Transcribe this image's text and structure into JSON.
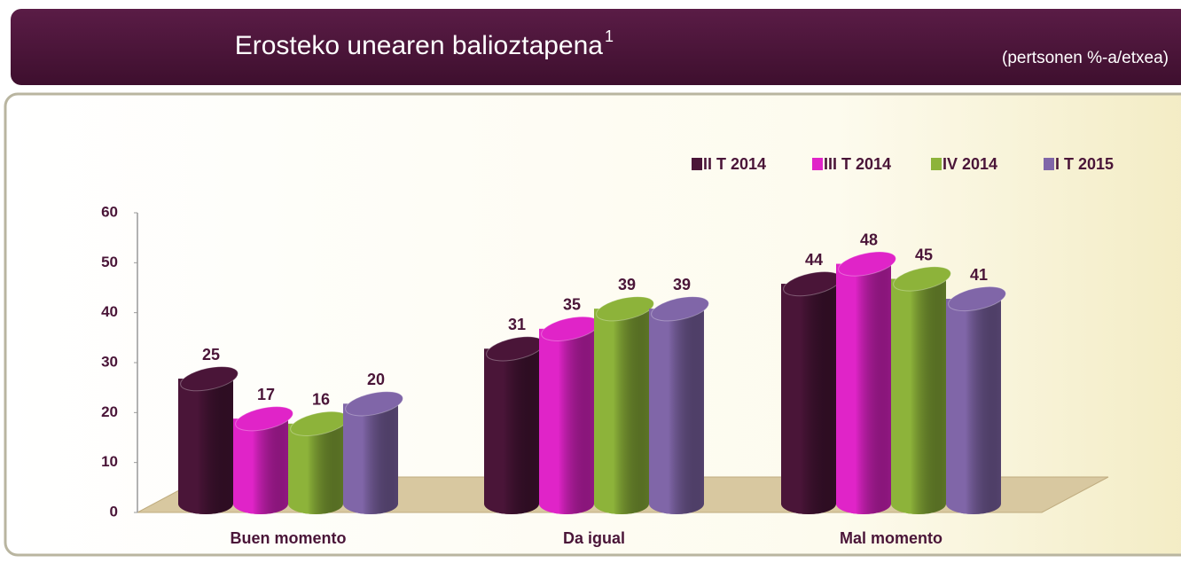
{
  "chart_data": {
    "type": "bar",
    "title": "Erosteko unearen balioztapena",
    "title_superscript": "1",
    "subtitle": "(pertsonen %-a/etxea)",
    "categories": [
      "Buen momento",
      "Da igual",
      "Mal momento"
    ],
    "series": [
      {
        "name": "II T 2014",
        "color": "#4a1538",
        "values": [
          25,
          31,
          44
        ]
      },
      {
        "name": "III T 2014",
        "color": "#e024c8",
        "values": [
          17,
          35,
          48
        ]
      },
      {
        "name": "IV 2014",
        "color": "#8db33a",
        "values": [
          16,
          39,
          45
        ]
      },
      {
        "name": "I T 2015",
        "color": "#8066a8",
        "values": [
          20,
          39,
          41
        ]
      }
    ],
    "ylim": [
      0,
      60
    ],
    "yticks": [
      0,
      10,
      20,
      30,
      40,
      50,
      60
    ],
    "legend": "top-right"
  }
}
